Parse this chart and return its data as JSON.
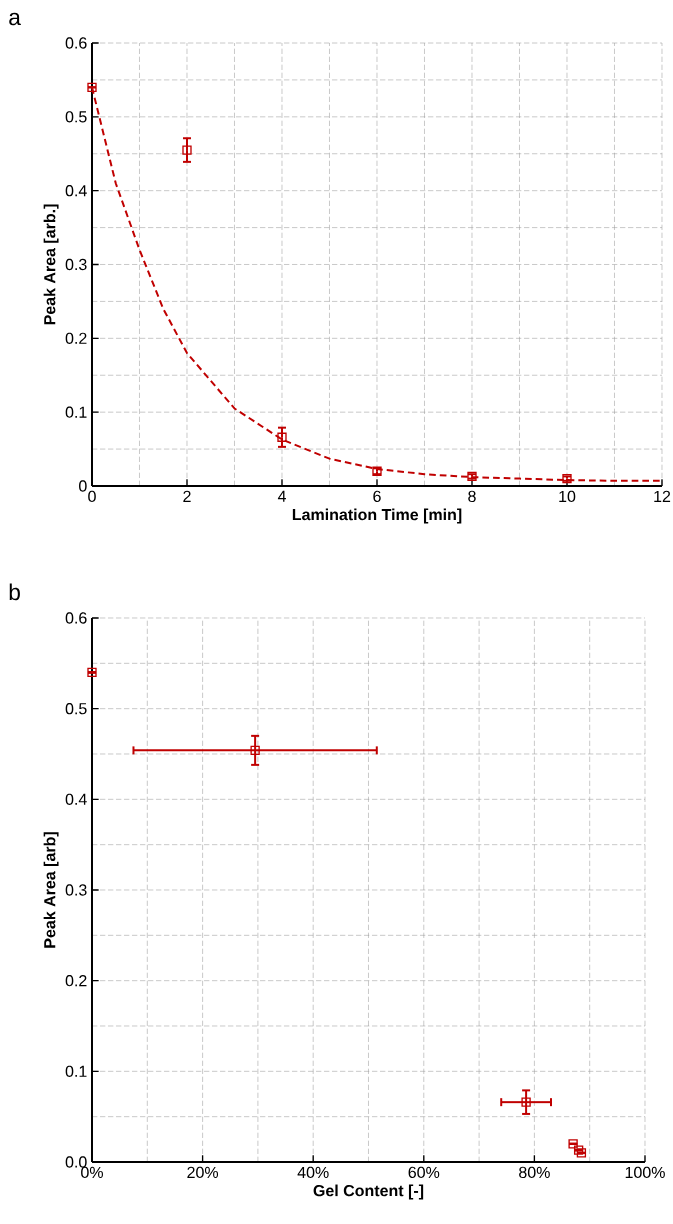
{
  "chart_data": [
    {
      "type": "scatter",
      "title": "a",
      "xlabel": "Lamination Time [min]",
      "ylabel": "Peak Area [arb.]",
      "series": [
        {
          "type": "scatter",
          "color": "#c00000",
          "marker": "square",
          "x": [
            0,
            2,
            4,
            6,
            8,
            10
          ],
          "values": [
            0.54,
            0.455,
            0.066,
            0.02,
            0.013,
            0.01
          ],
          "errors": [
            null,
            0.016,
            0.013,
            0.004,
            0.003,
            0.003
          ]
        },
        {
          "type": "line",
          "color": "#c00000",
          "line_style": "dashed",
          "x": [
            0,
            0.5,
            1,
            1.5,
            2,
            3,
            4,
            5,
            6,
            7,
            8,
            9,
            10,
            11,
            12
          ],
          "values": [
            0.54,
            0.41,
            0.32,
            0.24,
            0.18,
            0.105,
            0.063,
            0.037,
            0.023,
            0.016,
            0.012,
            0.01,
            0.008,
            0.007,
            0.007
          ]
        }
      ],
      "xlim": [
        0,
        12
      ],
      "ylim": [
        0,
        0.6
      ],
      "xticks": [
        0,
        {
          "value": 1,
          "label": null
        },
        2,
        {
          "value": 3,
          "label": null
        },
        4,
        {
          "value": 5,
          "label": null
        },
        6,
        {
          "value": 7,
          "label": null
        },
        8,
        {
          "value": 9,
          "label": null
        },
        10,
        {
          "value": 11,
          "label": null
        },
        12
      ],
      "yticks": [
        0,
        {
          "value": 0.05,
          "label": null
        },
        0.1,
        {
          "value": 0.15,
          "label": null
        },
        0.2,
        {
          "value": 0.25,
          "label": null
        },
        0.3,
        {
          "value": 0.35,
          "label": null
        },
        0.4,
        {
          "value": 0.45,
          "label": null
        },
        0.5,
        {
          "value": 0.55,
          "label": null
        },
        0.6
      ],
      "grid": true
    },
    {
      "type": "scatter",
      "title": "b",
      "xlabel": "Gel Content [-]",
      "ylabel": "Peak Area [arb]",
      "series": [
        {
          "type": "scatter",
          "color": "#c00000",
          "marker": "square",
          "x": [
            0,
            29.5,
            78.5,
            87,
            88,
            88.5
          ],
          "values": [
            0.54,
            0.454,
            0.066,
            0.02,
            0.013,
            0.01
          ],
          "errors": [
            null,
            0.016,
            0.013,
            null,
            null,
            null
          ],
          "xerrors": [
            null,
            22,
            4.5,
            null,
            null,
            null
          ]
        }
      ],
      "xlim": [
        0,
        100
      ],
      "ylim": [
        0,
        0.6
      ],
      "xticks": [
        {
          "value": 0,
          "label": "0%"
        },
        {
          "value": 10,
          "label": null
        },
        {
          "value": 20,
          "label": "20%"
        },
        {
          "value": 30,
          "label": null
        },
        {
          "value": 40,
          "label": "40%"
        },
        {
          "value": 50,
          "label": null
        },
        {
          "value": 60,
          "label": "60%"
        },
        {
          "value": 70,
          "label": null
        },
        {
          "value": 80,
          "label": "80%"
        },
        {
          "value": 90,
          "label": null
        },
        {
          "value": 100,
          "label": "100%"
        }
      ],
      "yticks": [
        {
          "value": 0,
          "label": "0.0"
        },
        {
          "value": 0.05,
          "label": null
        },
        0.1,
        {
          "value": 0.15,
          "label": null
        },
        0.2,
        {
          "value": 0.25,
          "label": null
        },
        0.3,
        {
          "value": 0.35,
          "label": null
        },
        0.4,
        {
          "value": 0.45,
          "label": null
        },
        0.5,
        {
          "value": 0.55,
          "label": null
        },
        0.6
      ],
      "grid": true
    }
  ]
}
